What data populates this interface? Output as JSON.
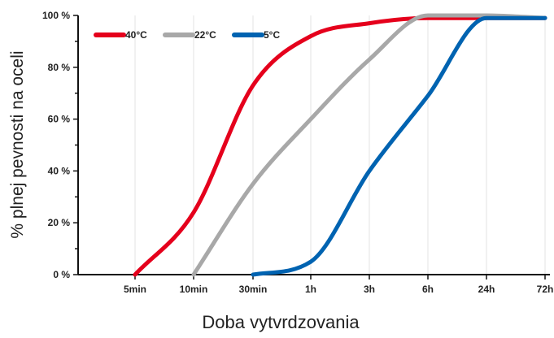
{
  "chart_data": {
    "type": "line",
    "xlabel": "Doba vytvrdzovania",
    "ylabel": "% plnej pevnosti na oceli",
    "x_ticks": [
      "5min",
      "10min",
      "30min",
      "1h",
      "3h",
      "6h",
      "24h",
      "72h"
    ],
    "y_ticks": [
      "0 %",
      "20 %",
      "40 %",
      "60 %",
      "80 %",
      "100 %"
    ],
    "ylim": [
      0,
      100
    ],
    "grid": "vertical",
    "legend": "top-left",
    "series": [
      {
        "name": "40°C",
        "color": "#e5001c",
        "points": [
          {
            "x": "5min",
            "y": 0
          },
          {
            "x": "10min",
            "y": 24
          },
          {
            "x": "30min",
            "y": 73
          },
          {
            "x": "1h",
            "y": 92
          },
          {
            "x": "3h",
            "y": 97
          },
          {
            "x": "6h",
            "y": 99
          },
          {
            "x": "24h",
            "y": 99
          },
          {
            "x": "72h",
            "y": 99
          }
        ]
      },
      {
        "name": "22°C",
        "color": "#a8a8a8",
        "points": [
          {
            "x": "10min",
            "y": 0
          },
          {
            "x": "30min",
            "y": 35
          },
          {
            "x": "1h",
            "y": 60
          },
          {
            "x": "3h",
            "y": 83
          },
          {
            "x": "6h",
            "y": 100
          },
          {
            "x": "24h",
            "y": 100
          },
          {
            "x": "72h",
            "y": 99
          }
        ]
      },
      {
        "name": "5°C",
        "color": "#0063b1",
        "points": [
          {
            "x": "30min",
            "y": 0
          },
          {
            "x": "1h",
            "y": 5
          },
          {
            "x": "3h",
            "y": 40
          },
          {
            "x": "6h",
            "y": 69
          },
          {
            "x": "24h",
            "y": 99
          },
          {
            "x": "72h",
            "y": 99
          }
        ]
      }
    ]
  }
}
